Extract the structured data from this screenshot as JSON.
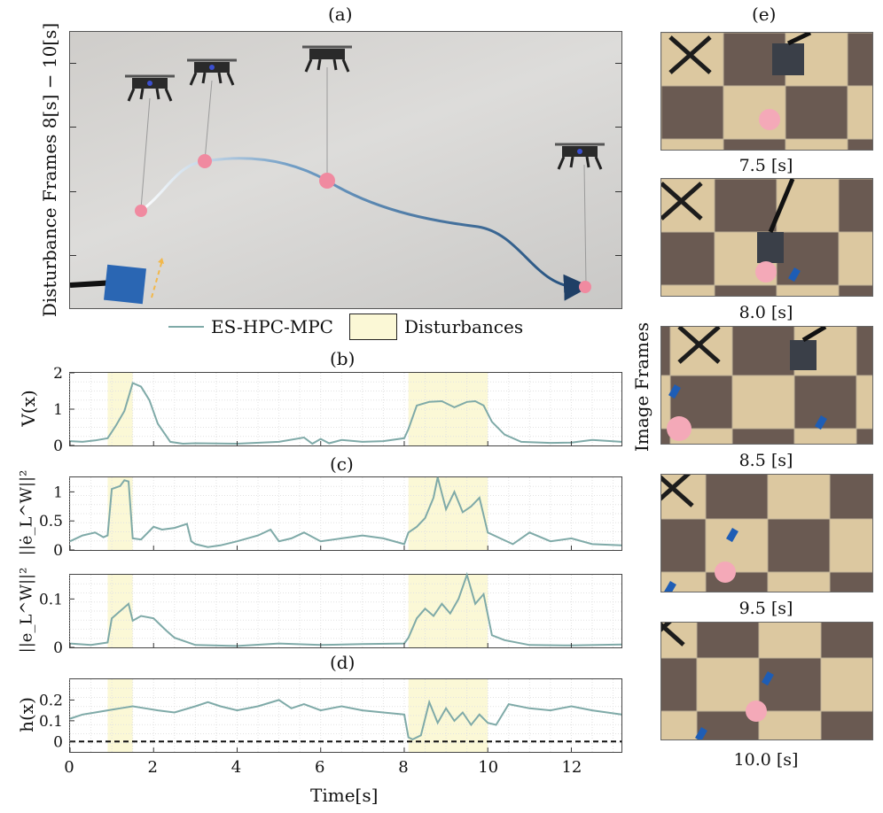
{
  "panel_labels": {
    "a": "(a)",
    "b": "(b)",
    "c": "(c)",
    "d": "(d)",
    "e": "(e)"
  },
  "photo_ylabel": "Disturbance Frames 8[s] − 10[s]",
  "image_frames_label": "Image Frames",
  "frame_times": [
    "7.5 [s]",
    "8.0 [s]",
    "8.5 [s]",
    "9.5 [s]",
    "10.0 [s]"
  ],
  "legend": {
    "series": "ES-HPC-MPC",
    "shade": "Disturbances"
  },
  "colors": {
    "series": "#7faaa8",
    "shade": "#fbf8d6",
    "trajectory_end": "#2f5f91",
    "ball": "#f08aa0",
    "dashed": "#111111"
  },
  "xlabel": "Time[s]",
  "chart_data": [
    {
      "type": "line",
      "ylabel": "V(x)",
      "xlim": [
        0,
        13.2
      ],
      "ylim": [
        0,
        2
      ],
      "yticks": [
        0,
        1,
        2
      ],
      "shade": [
        [
          0.9,
          1.5
        ],
        [
          8.1,
          10.0
        ]
      ],
      "x": [
        0,
        0.3,
        0.6,
        0.9,
        1.1,
        1.3,
        1.5,
        1.7,
        1.9,
        2.1,
        2.4,
        2.7,
        3,
        4,
        5,
        5.6,
        5.8,
        6,
        6.2,
        6.5,
        7,
        7.5,
        8,
        8.1,
        8.3,
        8.6,
        8.9,
        9.2,
        9.5,
        9.7,
        9.9,
        10.1,
        10.4,
        10.8,
        11.5,
        12,
        12.5,
        13.2
      ],
      "y": [
        0.12,
        0.1,
        0.14,
        0.2,
        0.55,
        0.95,
        1.72,
        1.62,
        1.25,
        0.6,
        0.1,
        0.05,
        0.06,
        0.05,
        0.1,
        0.22,
        0.05,
        0.18,
        0.06,
        0.15,
        0.1,
        0.12,
        0.2,
        0.45,
        1.1,
        1.2,
        1.22,
        1.05,
        1.2,
        1.22,
        1.1,
        0.65,
        0.3,
        0.1,
        0.07,
        0.08,
        0.15,
        0.1
      ]
    },
    {
      "type": "line",
      "ylabel": "||ė_L^W||²",
      "xlim": [
        0,
        13.2
      ],
      "ylim": [
        0,
        1.25
      ],
      "yticks": [
        0,
        0.5,
        1
      ],
      "yticklabels": [
        "0",
        "0.5",
        "1"
      ],
      "shade": [
        [
          0.9,
          1.5
        ],
        [
          8.1,
          10.0
        ]
      ],
      "x": [
        0,
        0.3,
        0.6,
        0.8,
        0.9,
        1.0,
        1.2,
        1.3,
        1.4,
        1.5,
        1.7,
        2,
        2.2,
        2.5,
        2.8,
        2.9,
        3,
        3.3,
        3.6,
        4,
        4.5,
        4.8,
        5,
        5.3,
        5.6,
        6,
        6.5,
        7,
        7.5,
        8,
        8.1,
        8.3,
        8.5,
        8.7,
        8.8,
        9,
        9.2,
        9.4,
        9.6,
        9.8,
        10,
        10.3,
        10.6,
        11,
        11.5,
        12,
        12.5,
        13.2
      ],
      "y": [
        0.15,
        0.25,
        0.3,
        0.22,
        0.25,
        1.05,
        1.1,
        1.2,
        1.18,
        0.2,
        0.18,
        0.4,
        0.35,
        0.38,
        0.45,
        0.15,
        0.1,
        0.05,
        0.08,
        0.15,
        0.25,
        0.35,
        0.15,
        0.2,
        0.3,
        0.15,
        0.2,
        0.25,
        0.2,
        0.1,
        0.3,
        0.4,
        0.55,
        0.9,
        1.25,
        0.7,
        1.0,
        0.65,
        0.75,
        0.9,
        0.3,
        0.2,
        0.1,
        0.3,
        0.15,
        0.2,
        0.1,
        0.08
      ]
    },
    {
      "type": "line",
      "ylabel": "||e_L^W||²",
      "xlim": [
        0,
        13.2
      ],
      "ylim": [
        0,
        0.15
      ],
      "yticks": [
        0,
        0.1
      ],
      "yticklabels": [
        "0",
        "0.1"
      ],
      "shade": [
        [
          0.9,
          1.5
        ],
        [
          8.1,
          10.0
        ]
      ],
      "x": [
        0,
        0.5,
        0.9,
        1.0,
        1.2,
        1.4,
        1.5,
        1.7,
        2,
        2.3,
        2.5,
        3,
        4,
        5,
        6,
        7,
        8,
        8.1,
        8.3,
        8.5,
        8.7,
        8.9,
        9.1,
        9.3,
        9.5,
        9.7,
        9.9,
        10.1,
        10.4,
        11,
        12,
        13.2
      ],
      "y": [
        0.008,
        0.005,
        0.01,
        0.06,
        0.075,
        0.09,
        0.055,
        0.065,
        0.06,
        0.035,
        0.02,
        0.005,
        0.003,
        0.008,
        0.005,
        0.007,
        0.008,
        0.02,
        0.06,
        0.08,
        0.065,
        0.09,
        0.07,
        0.1,
        0.15,
        0.09,
        0.11,
        0.025,
        0.015,
        0.005,
        0.004,
        0.006
      ]
    },
    {
      "type": "line",
      "ylabel": "h(x)",
      "xlim": [
        0,
        13.2
      ],
      "ylim": [
        -0.05,
        0.3
      ],
      "yticks": [
        0,
        0.1,
        0.2
      ],
      "yticklabels": [
        "0",
        "0.1",
        "0.2"
      ],
      "shade": [
        [
          0.9,
          1.5
        ],
        [
          8.1,
          10.0
        ]
      ],
      "x": [
        0,
        0.3,
        0.6,
        0.9,
        1.2,
        1.5,
        1.8,
        2.1,
        2.5,
        3,
        3.3,
        3.6,
        4,
        4.5,
        5,
        5.3,
        5.6,
        6,
        6.5,
        7,
        7.5,
        8,
        8.1,
        8.2,
        8.4,
        8.6,
        8.8,
        9,
        9.2,
        9.4,
        9.6,
        9.8,
        10,
        10.2,
        10.5,
        11,
        11.5,
        12,
        12.5,
        13.2
      ],
      "y": [
        0.11,
        0.13,
        0.14,
        0.15,
        0.16,
        0.17,
        0.16,
        0.15,
        0.14,
        0.17,
        0.19,
        0.17,
        0.15,
        0.17,
        0.2,
        0.16,
        0.18,
        0.15,
        0.17,
        0.15,
        0.14,
        0.13,
        0.02,
        0.01,
        0.03,
        0.19,
        0.09,
        0.16,
        0.1,
        0.14,
        0.08,
        0.13,
        0.09,
        0.08,
        0.18,
        0.16,
        0.15,
        0.17,
        0.15,
        0.13
      ]
    }
  ],
  "xticks": [
    0,
    2,
    4,
    6,
    8,
    10,
    12
  ]
}
